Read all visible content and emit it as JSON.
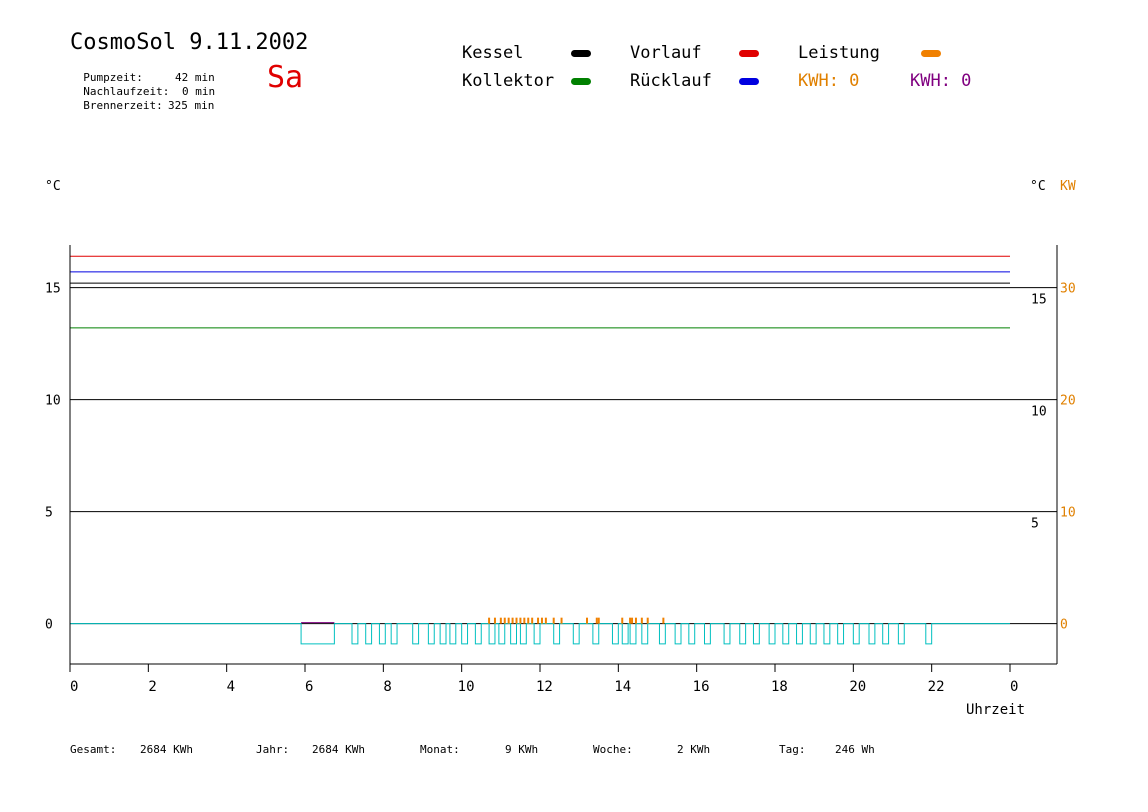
{
  "header": {
    "title": "CosmoSol 9.11.2002",
    "weekday": "Sa",
    "weekday_color": "#e00000",
    "stats": [
      {
        "label": "Pumpzeit:",
        "value": "42 min"
      },
      {
        "label": "Nachlaufzeit:",
        "value": "0 min"
      },
      {
        "label": "Brennerzeit:",
        "value": "325 min"
      }
    ]
  },
  "legend": {
    "kessel": {
      "label": "Kessel",
      "color": "#000000"
    },
    "vorlauf": {
      "label": "Vorlauf",
      "color": "#e00000"
    },
    "leistung": {
      "label": "Leistung",
      "color": "#f08000"
    },
    "kollektor": {
      "label": "Kollektor",
      "color": "#008000"
    },
    "ruecklauf": {
      "label": "Rücklauf",
      "color": "#0000e0"
    },
    "kwh1": {
      "text": "KWH: 0",
      "color": "#e08000"
    },
    "kwh2": {
      "text": "KWH: 0",
      "color": "#800080"
    }
  },
  "footer": {
    "gesamt": {
      "label": "Gesamt:",
      "value": "2684 KWh"
    },
    "jahr": {
      "label": "Jahr:",
      "value": "2684 KWh"
    },
    "monat": {
      "label": "Monat:",
      "value": "9 KWh"
    },
    "woche": {
      "label": "Woche:",
      "value": "2 KWh"
    },
    "tag": {
      "label": "Tag:",
      "value": "246 Wh"
    }
  },
  "chart_data": {
    "type": "line",
    "xlabel": "Uhrzeit",
    "x_ticks": [
      "0",
      "2",
      "4",
      "6",
      "8",
      "10",
      "12",
      "14",
      "16",
      "18",
      "20",
      "22",
      "0"
    ],
    "xlim": [
      0,
      24
    ],
    "left_axis": {
      "unit": "°C",
      "ticks": [
        "0",
        "5",
        "10",
        "15"
      ],
      "ylim": [
        -1.8,
        16.9
      ]
    },
    "right_axis_c": {
      "unit": "°C",
      "ticks": [
        "5",
        "10",
        "15"
      ]
    },
    "right_axis_kw": {
      "unit": "KW",
      "ticks": [
        "0",
        "10",
        "20",
        "30"
      ],
      "color": "#e08000"
    },
    "series": [
      {
        "name": "Vorlauf",
        "color": "#e00000",
        "y": 16.4
      },
      {
        "name": "Rücklauf",
        "color": "#0000e0",
        "y": 15.7
      },
      {
        "name": "Kessel",
        "color": "#000000",
        "y": 15.2
      },
      {
        "name": "Kollektor",
        "color": "#008000",
        "y": 13.2
      }
    ],
    "pump_signal": {
      "color": "#00c0c0",
      "base": 0,
      "low": -0.9,
      "pulses_h": [
        [
          5.9,
          6.75
        ],
        [
          7.2,
          7.35
        ],
        [
          7.55,
          7.7
        ],
        [
          7.9,
          8.05
        ],
        [
          8.2,
          8.35
        ],
        [
          8.75,
          8.9
        ],
        [
          9.15,
          9.3
        ],
        [
          9.45,
          9.6
        ],
        [
          9.7,
          9.85
        ],
        [
          10.0,
          10.15
        ],
        [
          10.35,
          10.5
        ],
        [
          10.7,
          10.85
        ],
        [
          10.95,
          11.1
        ],
        [
          11.25,
          11.4
        ],
        [
          11.5,
          11.65
        ],
        [
          11.85,
          12.0
        ],
        [
          12.35,
          12.5
        ],
        [
          12.85,
          13.0
        ],
        [
          13.35,
          13.5
        ],
        [
          13.85,
          14.0
        ],
        [
          14.1,
          14.25
        ],
        [
          14.3,
          14.45
        ],
        [
          14.6,
          14.75
        ],
        [
          15.05,
          15.2
        ],
        [
          15.45,
          15.6
        ],
        [
          15.8,
          15.95
        ],
        [
          16.2,
          16.35
        ],
        [
          16.7,
          16.85
        ],
        [
          17.1,
          17.25
        ],
        [
          17.45,
          17.6
        ],
        [
          17.85,
          18.0
        ],
        [
          18.2,
          18.35
        ],
        [
          18.55,
          18.7
        ],
        [
          18.9,
          19.05
        ],
        [
          19.25,
          19.4
        ],
        [
          19.6,
          19.75
        ],
        [
          20.0,
          20.15
        ],
        [
          20.4,
          20.55
        ],
        [
          20.75,
          20.9
        ],
        [
          21.15,
          21.3
        ],
        [
          21.85,
          22.0
        ]
      ]
    },
    "purple_trace": {
      "color": "#800080",
      "x": [
        5.9,
        6.75
      ],
      "y": 0
    },
    "leistung_ticks": {
      "color": "#f08000",
      "x_h": [
        10.7,
        10.85,
        11.0,
        11.1,
        11.2,
        11.3,
        11.4,
        11.5,
        11.6,
        11.7,
        11.8,
        11.95,
        12.05,
        12.15,
        12.35,
        12.55,
        13.2,
        13.45,
        13.5,
        14.1,
        14.3,
        14.35,
        14.45,
        14.6,
        14.75,
        15.15
      ]
    }
  }
}
